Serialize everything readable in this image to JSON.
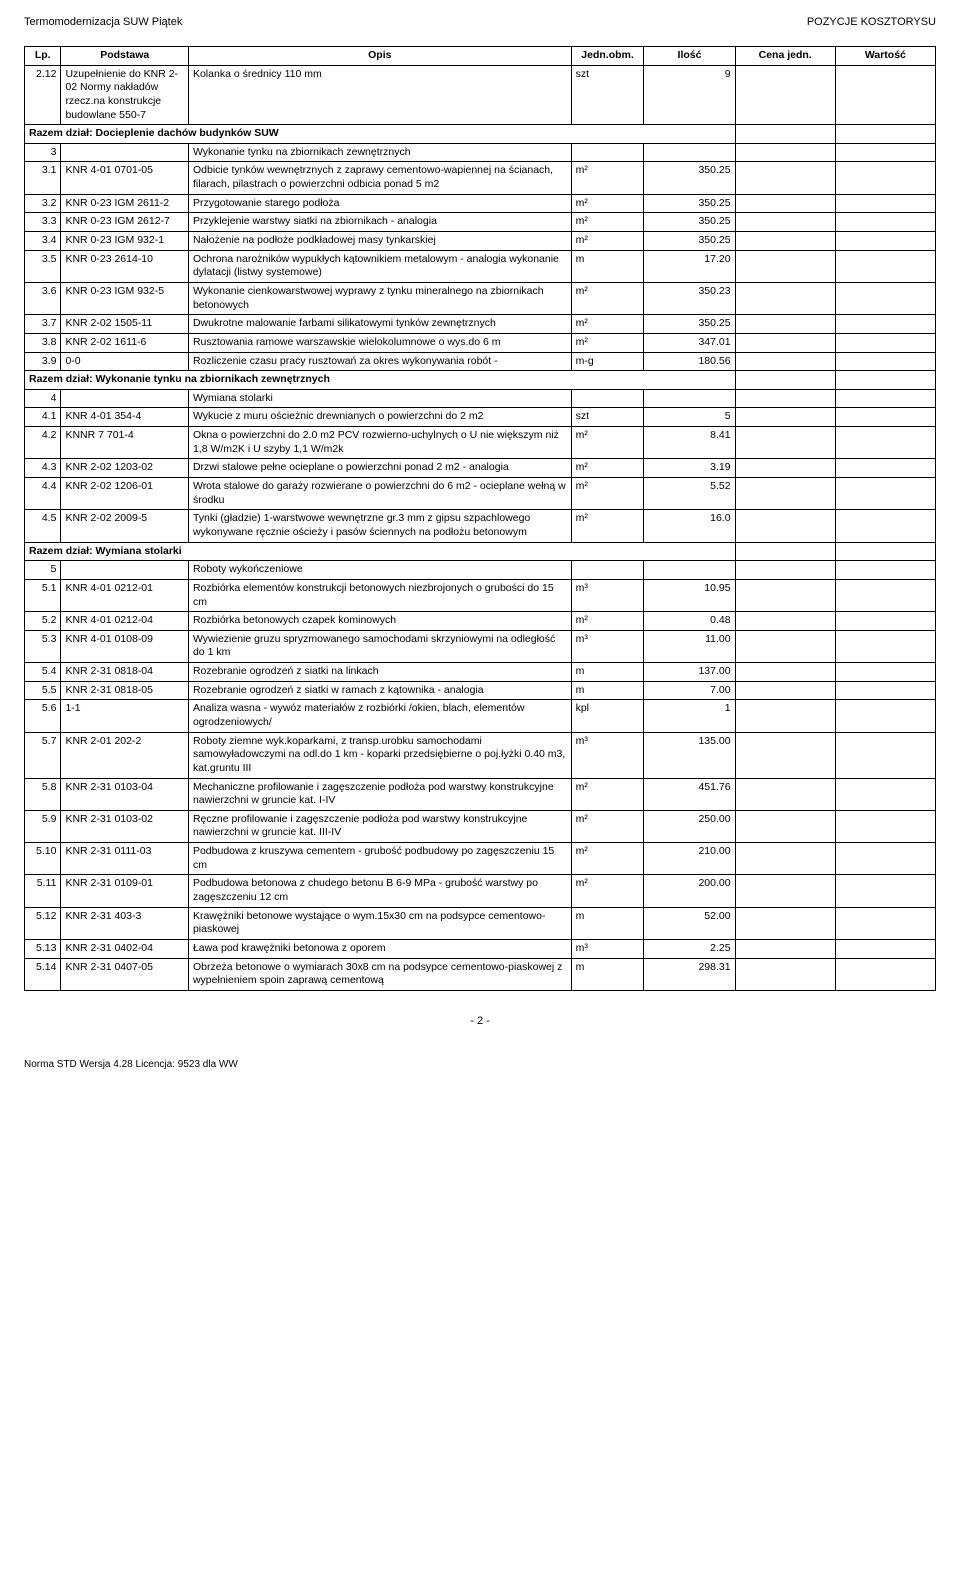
{
  "header": {
    "left": "Termomodernizacja SUW Piątek",
    "right": "POZYCJE KOSZTORYSU"
  },
  "table": {
    "columns": [
      "Lp.",
      "Podstawa",
      "Opis",
      "Jedn.obm.",
      "Ilość",
      "Cena jedn.",
      "Wartość"
    ],
    "col_widths_pct": [
      4,
      14,
      42,
      8,
      10,
      11,
      11
    ],
    "rows": [
      {
        "lp": "2.12",
        "pod": "Uzupełnienie do KNR 2-02 Normy nakładów rzecz.na konstrukcje budowlane 550-7",
        "opis": "Kolanka o średnicy 110 mm",
        "jedn": "szt",
        "ilosc": "9",
        "cena": "",
        "wart": ""
      },
      {
        "type": "razem",
        "span": 7,
        "text": "Razem dział: Docieplenie dachów budynków SUW"
      },
      {
        "type": "section",
        "lp": "3",
        "opis": "Wykonanie tynku na zbiornikach zewnętrznych"
      },
      {
        "lp": "3.1",
        "pod": "KNR 4-01 0701-05",
        "opis": "Odbicie tynków wewnętrznych z zaprawy cementowo-wapiennej na ścianach, filarach, pilastrach o powierzchni odbicia ponad 5 m2",
        "jedn": "m²",
        "ilosc": "350.25",
        "cena": "",
        "wart": ""
      },
      {
        "lp": "3.2",
        "pod": "KNR 0-23 IGM 2611-2",
        "opis": "Przygotowanie starego podłoża",
        "jedn": "m²",
        "ilosc": "350.25",
        "cena": "",
        "wart": ""
      },
      {
        "lp": "3.3",
        "pod": "KNR 0-23 IGM 2612-7",
        "opis": "Przyklejenie warstwy siatki na zbiornikach - analogia",
        "jedn": "m²",
        "ilosc": "350.25",
        "cena": "",
        "wart": ""
      },
      {
        "lp": "3.4",
        "pod": "KNR 0-23 IGM 932-1",
        "opis": "Nałożenie na podłoże podkładowej masy tynkarskiej",
        "jedn": "m²",
        "ilosc": "350.25",
        "cena": "",
        "wart": ""
      },
      {
        "lp": "3.5",
        "pod": "KNR 0-23 2614-10",
        "opis": "Ochrona narożników wypukłych kątownikiem metalowym - analogia wykonanie dylatacji (listwy systemowe)",
        "jedn": "m",
        "ilosc": "17.20",
        "cena": "",
        "wart": ""
      },
      {
        "lp": "3.6",
        "pod": "KNR 0-23 IGM 932-5",
        "opis": "Wykonanie cienkowarstwowej wyprawy z tynku mineralnego na zbiornikach betonowych",
        "jedn": "m²",
        "ilosc": "350.23",
        "cena": "",
        "wart": ""
      },
      {
        "lp": "3.7",
        "pod": "KNR 2-02 1505-11",
        "opis": "Dwukrotne malowanie farbami silikatowymi tynków zewnętrznych",
        "jedn": "m²",
        "ilosc": "350.25",
        "cena": "",
        "wart": ""
      },
      {
        "lp": "3.8",
        "pod": "KNR 2-02 1611-6",
        "opis": "Rusztowania ramowe warszawskie wielokolumnowe o wys.do 6 m",
        "jedn": "m²",
        "ilosc": "347.01",
        "cena": "",
        "wart": ""
      },
      {
        "lp": "3.9",
        "pod": "0-0",
        "opis": "Rozliczenie czasu pracy rusztowań za okres wykonywania robót -",
        "jedn": "m-g",
        "ilosc": "180.56",
        "cena": "",
        "wart": ""
      },
      {
        "type": "razem",
        "span": 7,
        "text": "Razem dział: Wykonanie tynku na zbiornikach zewnętrznych"
      },
      {
        "type": "section",
        "lp": "4",
        "opis": "Wymiana stolarki"
      },
      {
        "lp": "4.1",
        "pod": "KNR 4-01 354-4",
        "opis": "Wykucie z muru ościeżnic drewnianych o powierzchni do 2 m2",
        "jedn": "szt",
        "ilosc": "5",
        "cena": "",
        "wart": ""
      },
      {
        "lp": "4.2",
        "pod": "KNNR 7 701-4",
        "opis": "Okna o powierzchni do 2.0 m2 PCV rozwierno-uchylnych o U nie większym niż 1,8 W/m2K i U szyby  1,1 W/m2k",
        "jedn": "m²",
        "ilosc": "8.41",
        "cena": "",
        "wart": ""
      },
      {
        "lp": "4.3",
        "pod": "KNR 2-02 1203-02",
        "opis": "Drzwi stalowe pełne ocieplane o powierzchni ponad 2 m2 - analogia",
        "jedn": "m²",
        "ilosc": "3.19",
        "cena": "",
        "wart": ""
      },
      {
        "lp": "4.4",
        "pod": "KNR 2-02 1206-01",
        "opis": "Wrota stalowe do garaży rozwierane o powierzchni do 6 m2 - ocieplane wełną w środku",
        "jedn": "m²",
        "ilosc": "5.52",
        "cena": "",
        "wart": ""
      },
      {
        "lp": "4.5",
        "pod": "KNR 2-02 2009-5",
        "opis": "Tynki (gładzie) 1-warstwowe wewnętrzne gr.3 mm z gipsu szpachlowego wykonywane ręcznie ościeży i pasów ściennych na podłożu betonowym",
        "jedn": "m²",
        "ilosc": "16.0",
        "cena": "",
        "wart": ""
      },
      {
        "type": "razem",
        "span": 7,
        "text": "Razem dział: Wymiana stolarki"
      },
      {
        "type": "section",
        "lp": "5",
        "opis": "Roboty wykończeniowe"
      },
      {
        "lp": "5.1",
        "pod": "KNR 4-01 0212-01",
        "opis": "Rozbiórka elementów konstrukcji betonowych niezbrojonych o grubości do 15 cm",
        "jedn": "m³",
        "ilosc": "10.95",
        "cena": "",
        "wart": ""
      },
      {
        "lp": "5.2",
        "pod": "KNR 4-01 0212-04",
        "opis": "Rozbiórka betonowych czapek kominowych",
        "jedn": "m²",
        "ilosc": "0.48",
        "cena": "",
        "wart": ""
      },
      {
        "lp": "5.3",
        "pod": "KNR 4-01 0108-09",
        "opis": "Wywiezienie gruzu spryzmowanego samochodami skrzyniowymi na odległość do 1 km",
        "jedn": "m³",
        "ilosc": "11.00",
        "cena": "",
        "wart": ""
      },
      {
        "lp": "5.4",
        "pod": "KNR 2-31 0818-04",
        "opis": "Rozebranie ogrodzeń z siatki na linkach",
        "jedn": "m",
        "ilosc": "137.00",
        "cena": "",
        "wart": ""
      },
      {
        "lp": "5.5",
        "pod": "KNR 2-31 0818-05",
        "opis": "Rozebranie ogrodzeń z siatki w ramach z kątownika - analogia",
        "jedn": "m",
        "ilosc": "7.00",
        "cena": "",
        "wart": ""
      },
      {
        "lp": "5.6",
        "pod": "1-1",
        "opis": "Analiza wasna - wywóz materiałów z rozbiórki /okien, blach, elementów ogrodzeniowych/",
        "jedn": "kpl",
        "ilosc": "1",
        "cena": "",
        "wart": ""
      },
      {
        "lp": "5.7",
        "pod": "KNR 2-01 202-2",
        "opis": "Roboty ziemne wyk.koparkami, z transp.urobku samochodami samowyładowczymi na odl.do 1 km - koparki przedsiębierne o poj.łyżki 0.40 m3, kat.gruntu III",
        "jedn": "m³",
        "ilosc": "135.00",
        "cena": "",
        "wart": ""
      },
      {
        "lp": "5.8",
        "pod": "KNR 2-31 0103-04",
        "opis": "Mechaniczne profilowanie i zagęszczenie podłoża pod warstwy konstrukcyjne nawierzchni w gruncie kat. I-IV",
        "jedn": "m²",
        "ilosc": "451.76",
        "cena": "",
        "wart": ""
      },
      {
        "lp": "5.9",
        "pod": "KNR 2-31 0103-02",
        "opis": "Ręczne profilowanie i zagęszczenie podłoża pod warstwy konstrukcyjne nawierzchni w gruncie kat. III-IV",
        "jedn": "m²",
        "ilosc": "250.00",
        "cena": "",
        "wart": ""
      },
      {
        "lp": "5.10",
        "pod": "KNR 2-31 0111-03",
        "opis": "Podbudowa z kruszywa cementem - grubość podbudowy po zagęszczeniu 15 cm",
        "jedn": "m²",
        "ilosc": "210.00",
        "cena": "",
        "wart": ""
      },
      {
        "lp": "5.11",
        "pod": "KNR 2-31 0109-01",
        "opis": "Podbudowa betonowa z chudego betonu B 6-9 MPa - grubość warstwy po zagęszczeniu 12 cm",
        "jedn": "m²",
        "ilosc": "200.00",
        "cena": "",
        "wart": ""
      },
      {
        "lp": "5.12",
        "pod": "KNR 2-31 403-3",
        "opis": "Krawężniki betonowe wystające o wym.15x30 cm na podsypce cementowo-piaskowej",
        "jedn": "m",
        "ilosc": "52.00",
        "cena": "",
        "wart": ""
      },
      {
        "lp": "5.13",
        "pod": "KNR 2-31 0402-04",
        "opis": "Ława pod krawężniki betonowa z oporem",
        "jedn": "m³",
        "ilosc": "2.25",
        "cena": "",
        "wart": ""
      },
      {
        "lp": "5.14",
        "pod": "KNR 2-31 0407-05",
        "opis": "Obrzeża betonowe o wymiarach 30x8 cm na podsypce cementowo-piaskowej z wypełnieniem spoin zaprawą cementową",
        "jedn": "m",
        "ilosc": "298.31",
        "cena": "",
        "wart": ""
      }
    ]
  },
  "page_number": "- 2 -",
  "footer": "Norma STD Wersja 4.28 Licencja: 9523 dla WW"
}
